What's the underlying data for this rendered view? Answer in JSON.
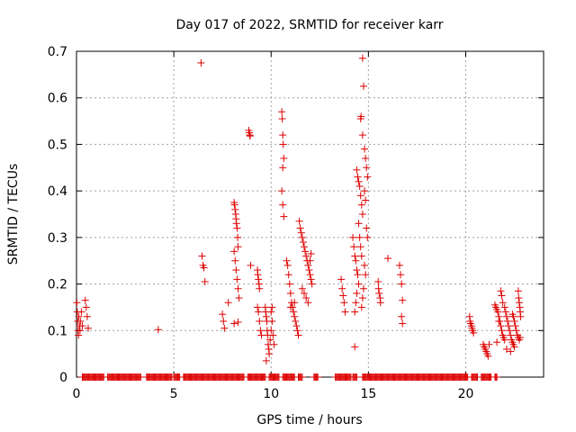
{
  "chart_data": {
    "type": "scatter",
    "title": "Day 017 of 2022, SRMTID for receiver karr",
    "xlabel": "GPS time / hours",
    "ylabel": "SRMTID / TECUs",
    "xlim": [
      0,
      24
    ],
    "ylim": [
      0,
      0.7
    ],
    "xticks": [
      0,
      5,
      10,
      15,
      20
    ],
    "yticks": [
      0,
      0.1,
      0.2,
      0.3,
      0.4,
      0.5,
      0.6,
      0.7
    ],
    "grid": true,
    "marker": "+",
    "series": [
      {
        "name": "SRMTID",
        "color": "#dd0000",
        "points": [
          [
            0.02,
            0.16
          ],
          [
            0.04,
            0.14
          ],
          [
            0.06,
            0.12
          ],
          [
            0.08,
            0.1
          ],
          [
            0.1,
            0.09
          ],
          [
            0.12,
            0.13
          ],
          [
            0.15,
            0.11
          ],
          [
            0.18,
            0.1
          ],
          [
            0.2,
            0.12
          ],
          [
            0.25,
            0.14
          ],
          [
            0.3,
            0.11
          ],
          [
            0.45,
            0.165
          ],
          [
            0.5,
            0.15
          ],
          [
            0.55,
            0.13
          ],
          [
            0.6,
            0.105
          ],
          [
            4.2,
            0.102
          ],
          [
            6.4,
            0.675
          ],
          [
            6.45,
            0.26
          ],
          [
            6.5,
            0.24
          ],
          [
            6.55,
            0.235
          ],
          [
            6.6,
            0.205
          ],
          [
            7.5,
            0.135
          ],
          [
            7.55,
            0.12
          ],
          [
            7.6,
            0.105
          ],
          [
            7.8,
            0.16
          ],
          [
            8.1,
            0.375
          ],
          [
            8.12,
            0.37
          ],
          [
            8.15,
            0.36
          ],
          [
            8.18,
            0.35
          ],
          [
            8.2,
            0.34
          ],
          [
            8.22,
            0.33
          ],
          [
            8.25,
            0.32
          ],
          [
            8.28,
            0.3
          ],
          [
            8.3,
            0.28
          ],
          [
            8.1,
            0.27
          ],
          [
            8.15,
            0.25
          ],
          [
            8.2,
            0.23
          ],
          [
            8.25,
            0.21
          ],
          [
            8.3,
            0.19
          ],
          [
            8.35,
            0.17
          ],
          [
            8.1,
            0.115
          ],
          [
            8.3,
            0.118
          ],
          [
            8.85,
            0.53
          ],
          [
            8.88,
            0.525
          ],
          [
            8.9,
            0.52
          ],
          [
            8.92,
            0.518
          ],
          [
            8.95,
            0.24
          ],
          [
            9.3,
            0.23
          ],
          [
            9.32,
            0.22
          ],
          [
            9.35,
            0.21
          ],
          [
            9.38,
            0.2
          ],
          [
            9.4,
            0.19
          ],
          [
            9.3,
            0.15
          ],
          [
            9.35,
            0.14
          ],
          [
            9.4,
            0.12
          ],
          [
            9.45,
            0.1
          ],
          [
            9.5,
            0.09
          ],
          [
            9.7,
            0.15
          ],
          [
            9.72,
            0.14
          ],
          [
            9.75,
            0.13
          ],
          [
            9.78,
            0.12
          ],
          [
            9.8,
            0.1
          ],
          [
            9.82,
            0.09
          ],
          [
            9.85,
            0.07
          ],
          [
            9.88,
            0.06
          ],
          [
            9.9,
            0.05
          ],
          [
            9.75,
            0.035
          ],
          [
            9.95,
            0.08
          ],
          [
            10.0,
            0.1
          ],
          [
            10.05,
            0.12
          ],
          [
            10.1,
            0.09
          ],
          [
            10.15,
            0.07
          ],
          [
            10.0,
            0.14
          ],
          [
            10.05,
            0.15
          ],
          [
            10.55,
            0.57
          ],
          [
            10.57,
            0.555
          ],
          [
            10.6,
            0.52
          ],
          [
            10.62,
            0.5
          ],
          [
            10.65,
            0.47
          ],
          [
            10.6,
            0.45
          ],
          [
            10.55,
            0.4
          ],
          [
            10.6,
            0.37
          ],
          [
            10.65,
            0.345
          ],
          [
            10.8,
            0.25
          ],
          [
            10.85,
            0.24
          ],
          [
            10.9,
            0.22
          ],
          [
            10.95,
            0.2
          ],
          [
            11.0,
            0.18
          ],
          [
            11.05,
            0.16
          ],
          [
            11.1,
            0.15
          ],
          [
            11.15,
            0.14
          ],
          [
            11.2,
            0.13
          ],
          [
            11.25,
            0.12
          ],
          [
            11.3,
            0.11
          ],
          [
            11.35,
            0.1
          ],
          [
            11.4,
            0.09
          ],
          [
            11.0,
            0.15
          ],
          [
            11.2,
            0.16
          ],
          [
            11.45,
            0.335
          ],
          [
            11.5,
            0.32
          ],
          [
            11.55,
            0.31
          ],
          [
            11.6,
            0.3
          ],
          [
            11.65,
            0.29
          ],
          [
            11.7,
            0.28
          ],
          [
            11.75,
            0.27
          ],
          [
            11.8,
            0.26
          ],
          [
            11.85,
            0.25
          ],
          [
            11.9,
            0.24
          ],
          [
            11.95,
            0.23
          ],
          [
            12.0,
            0.22
          ],
          [
            12.05,
            0.21
          ],
          [
            12.1,
            0.2
          ],
          [
            11.6,
            0.19
          ],
          [
            11.7,
            0.18
          ],
          [
            11.8,
            0.17
          ],
          [
            11.9,
            0.16
          ],
          [
            12.0,
            0.25
          ],
          [
            12.05,
            0.265
          ],
          [
            13.6,
            0.21
          ],
          [
            13.65,
            0.19
          ],
          [
            13.7,
            0.175
          ],
          [
            13.75,
            0.16
          ],
          [
            13.8,
            0.14
          ],
          [
            14.2,
            0.3
          ],
          [
            14.25,
            0.28
          ],
          [
            14.3,
            0.26
          ],
          [
            14.35,
            0.25
          ],
          [
            14.4,
            0.23
          ],
          [
            14.45,
            0.22
          ],
          [
            14.5,
            0.2
          ],
          [
            14.4,
            0.18
          ],
          [
            14.35,
            0.16
          ],
          [
            14.3,
            0.14
          ],
          [
            14.3,
            0.065
          ],
          [
            14.4,
            0.445
          ],
          [
            14.45,
            0.43
          ],
          [
            14.5,
            0.42
          ],
          [
            14.55,
            0.41
          ],
          [
            14.6,
            0.39
          ],
          [
            14.65,
            0.37
          ],
          [
            14.7,
            0.35
          ],
          [
            14.5,
            0.33
          ],
          [
            14.55,
            0.3
          ],
          [
            14.6,
            0.28
          ],
          [
            14.65,
            0.26
          ],
          [
            14.7,
            0.685
          ],
          [
            14.75,
            0.625
          ],
          [
            14.6,
            0.555
          ],
          [
            14.62,
            0.56
          ],
          [
            14.7,
            0.52
          ],
          [
            14.8,
            0.49
          ],
          [
            14.85,
            0.47
          ],
          [
            14.9,
            0.45
          ],
          [
            14.95,
            0.43
          ],
          [
            14.8,
            0.4
          ],
          [
            14.85,
            0.38
          ],
          [
            14.9,
            0.32
          ],
          [
            14.95,
            0.3
          ],
          [
            14.8,
            0.24
          ],
          [
            14.85,
            0.22
          ],
          [
            14.75,
            0.19
          ],
          [
            14.7,
            0.17
          ],
          [
            14.65,
            0.15
          ],
          [
            15.5,
            0.205
          ],
          [
            15.52,
            0.19
          ],
          [
            15.55,
            0.18
          ],
          [
            15.6,
            0.17
          ],
          [
            15.62,
            0.16
          ],
          [
            16.0,
            0.255
          ],
          [
            16.6,
            0.24
          ],
          [
            16.65,
            0.22
          ],
          [
            16.7,
            0.2
          ],
          [
            16.75,
            0.165
          ],
          [
            16.7,
            0.13
          ],
          [
            16.75,
            0.115
          ],
          [
            20.2,
            0.13
          ],
          [
            20.22,
            0.12
          ],
          [
            20.25,
            0.115
          ],
          [
            20.3,
            0.11
          ],
          [
            20.32,
            0.105
          ],
          [
            20.35,
            0.1
          ],
          [
            20.4,
            0.095
          ],
          [
            20.9,
            0.07
          ],
          [
            20.95,
            0.065
          ],
          [
            21.0,
            0.06
          ],
          [
            21.05,
            0.055
          ],
          [
            21.1,
            0.05
          ],
          [
            21.15,
            0.045
          ],
          [
            21.2,
            0.07
          ],
          [
            21.5,
            0.155
          ],
          [
            21.55,
            0.15
          ],
          [
            21.6,
            0.145
          ],
          [
            21.65,
            0.14
          ],
          [
            21.7,
            0.13
          ],
          [
            21.75,
            0.12
          ],
          [
            21.8,
            0.11
          ],
          [
            21.85,
            0.1
          ],
          [
            21.9,
            0.09
          ],
          [
            21.95,
            0.085
          ],
          [
            22.0,
            0.08
          ],
          [
            21.6,
            0.075
          ],
          [
            21.7,
            0.12
          ],
          [
            21.8,
            0.185
          ],
          [
            21.85,
            0.175
          ],
          [
            21.9,
            0.16
          ],
          [
            22.0,
            0.15
          ],
          [
            22.05,
            0.14
          ],
          [
            22.1,
            0.13
          ],
          [
            22.15,
            0.12
          ],
          [
            22.2,
            0.11
          ],
          [
            22.25,
            0.1
          ],
          [
            22.3,
            0.09
          ],
          [
            22.35,
            0.08
          ],
          [
            22.4,
            0.075
          ],
          [
            22.45,
            0.07
          ],
          [
            22.5,
            0.065
          ],
          [
            22.3,
            0.055
          ],
          [
            22.1,
            0.06
          ],
          [
            22.4,
            0.135
          ],
          [
            22.45,
            0.13
          ],
          [
            22.5,
            0.12
          ],
          [
            22.55,
            0.11
          ],
          [
            22.6,
            0.1
          ],
          [
            22.65,
            0.09
          ],
          [
            22.7,
            0.085
          ],
          [
            22.75,
            0.08
          ],
          [
            22.8,
            0.085
          ],
          [
            22.7,
            0.185
          ],
          [
            22.72,
            0.17
          ],
          [
            22.75,
            0.16
          ],
          [
            22.78,
            0.15
          ],
          [
            22.8,
            0.14
          ],
          [
            22.82,
            0.13
          ]
        ],
        "zero_segments": [
          [
            0.3,
            1.4
          ],
          [
            1.6,
            3.3
          ],
          [
            3.6,
            4.9
          ],
          [
            5.0,
            5.3
          ],
          [
            5.5,
            8.6
          ],
          [
            8.8,
            9.7
          ],
          [
            9.9,
            10.4
          ],
          [
            10.6,
            11.2
          ],
          [
            11.4,
            11.6
          ],
          [
            12.2,
            12.4
          ],
          [
            13.3,
            14.1
          ],
          [
            14.2,
            14.4
          ],
          [
            14.7,
            20.1
          ],
          [
            20.3,
            20.6
          ],
          [
            20.8,
            21.3
          ],
          [
            21.5,
            21.6
          ]
        ]
      }
    ]
  }
}
